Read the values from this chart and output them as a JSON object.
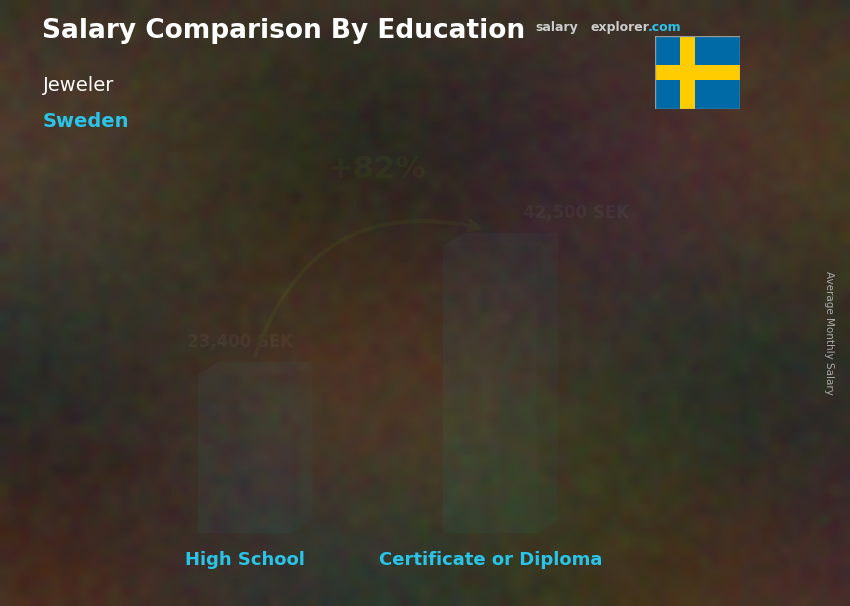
{
  "title_main": "Salary Comparison By Education",
  "subtitle_job": "Jeweler",
  "subtitle_country": "Sweden",
  "categories": [
    "High School",
    "Certificate or Diploma"
  ],
  "values": [
    23400,
    42500
  ],
  "value_labels": [
    "23,400 SEK",
    "42,500 SEK"
  ],
  "percent_label": "+82%",
  "bar_color_face": "#29C4E8",
  "bar_color_right": "#1A9BB8",
  "bar_color_top": "#55D8F5",
  "background_color": "#4a3f35",
  "xlabel_color": "#29C4E8",
  "title_color": "#FFFFFF",
  "subtitle_job_color": "#FFFFFF",
  "subtitle_country_color": "#29C4E8",
  "value_label_color": "#FFFFFF",
  "percent_color": "#ADFF2F",
  "arrow_color": "#ADFF2F",
  "salary_color": "#CCCCCC",
  "explorer_color": "#CCCCCC",
  "com_color": "#29C4E8",
  "right_label_color": "#AAAAAA",
  "flag_blue": "#006AA7",
  "flag_yellow": "#FECC00",
  "ylim": [
    0,
    52000
  ],
  "bar_width": 0.13,
  "bar_positions": [
    0.28,
    0.62
  ]
}
